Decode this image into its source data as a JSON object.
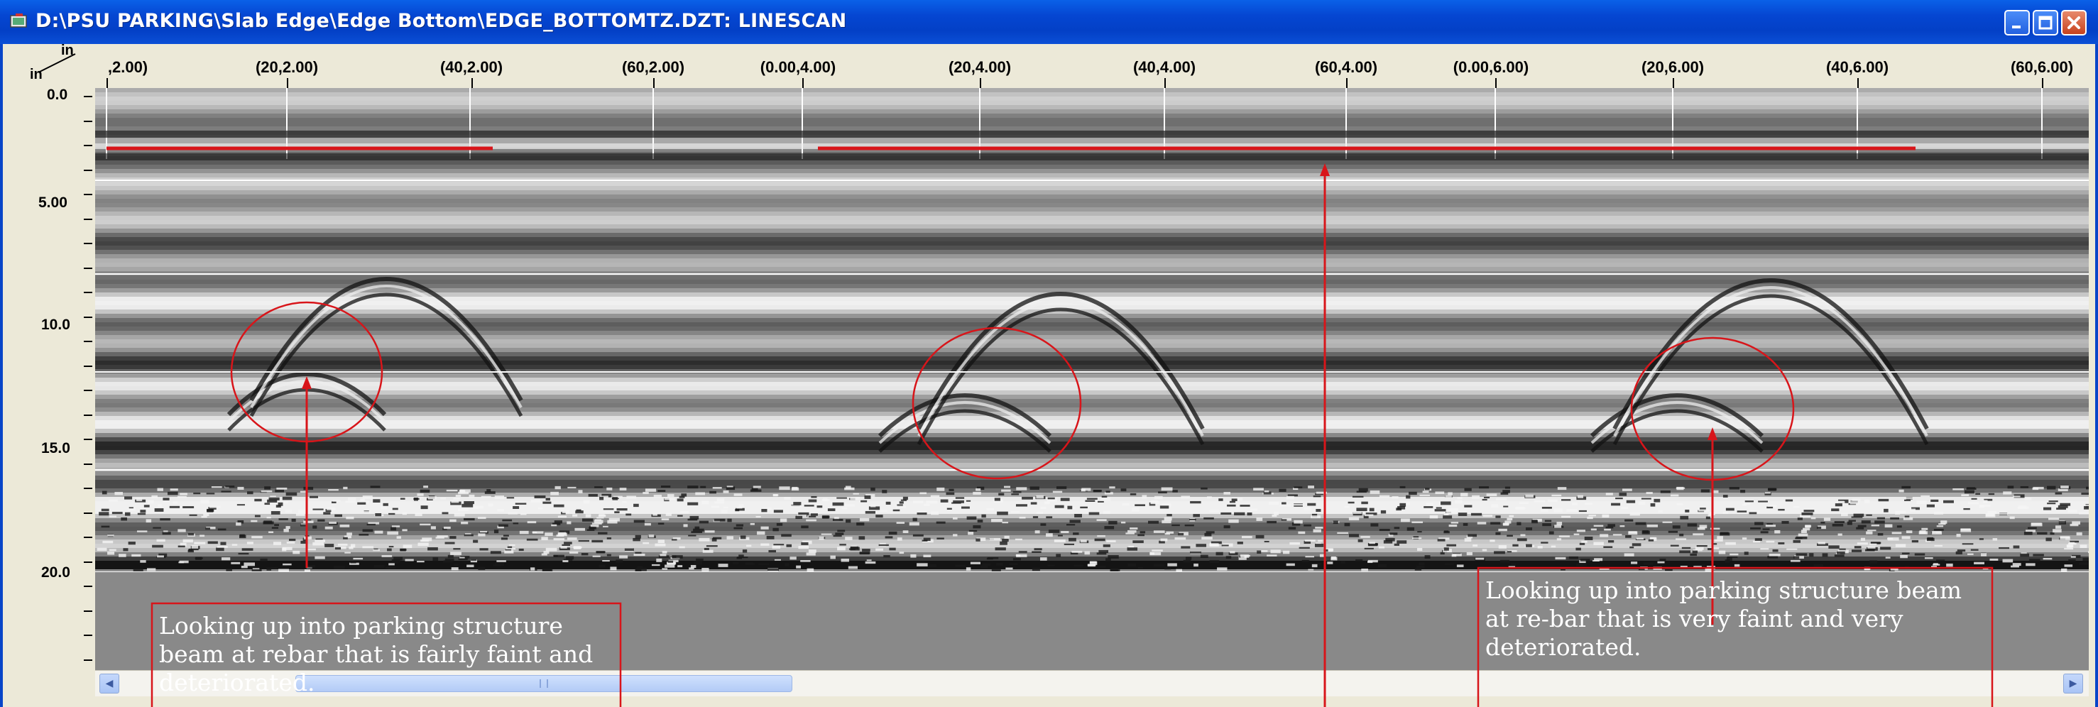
{
  "window": {
    "title": "D:\\PSU PARKING\\Slab Edge\\Edge Bottom\\EDGE_BOTTOMTZ.DZT:  LINESCAN",
    "buttons": {
      "minimize": "minimize",
      "maximize": "maximize",
      "close": "close"
    }
  },
  "ruler": {
    "unit_top": "in",
    "unit_left": "in",
    "depth_labels": [
      "0.0",
      "5.00",
      "10.0",
      "15.0",
      "20.0"
    ],
    "position_labels": [
      ",2.00)",
      "(20,2.00)",
      "(40,2.00)",
      "(60,2.00)",
      "(0.00,4.00)",
      "(20,4.00)",
      "(40,4.00)",
      "(60,4.00)",
      "(0.00,6.00)",
      "(20,6.00)",
      "(40,6.00)",
      "(60,6.00)"
    ]
  },
  "colors": {
    "annotation": "#d8151a",
    "titlebar": "#0546d2",
    "scan_background": "#8a8a8a"
  },
  "annotations": {
    "left_note": "Looking up into parking structure beam at rebar that is fairly faint and deteriorated.",
    "right_note": "Looking up into parking structure beam at re-bar that is very faint and very deteriorated."
  },
  "scrollbar": {
    "left_arrow": "◀",
    "right_arrow": "▶"
  }
}
